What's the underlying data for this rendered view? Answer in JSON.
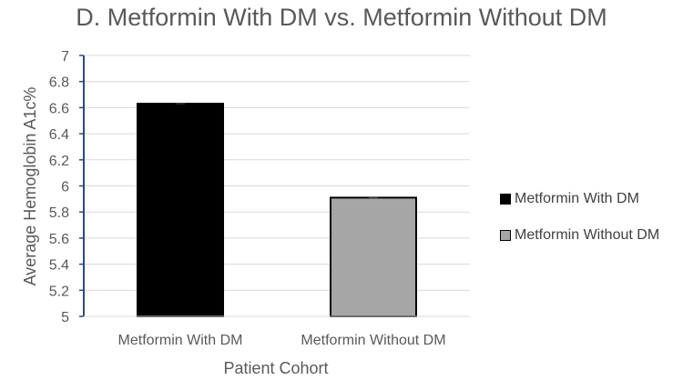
{
  "chart_data": {
    "type": "bar",
    "title": "D. Metformin With DM vs. Metformin Without DM",
    "xlabel": "Patient Cohort",
    "ylabel": "Average Hemoglobin A1c%",
    "ylim": [
      5,
      7
    ],
    "yticks": [
      "5",
      "5.2",
      "5.4",
      "5.6",
      "5.8",
      "6",
      "6.2",
      "6.4",
      "6.6",
      "6.8",
      "7"
    ],
    "categories": [
      "Metformin With DM",
      "Metformin Without DM"
    ],
    "values": [
      6.63,
      5.91
    ],
    "colors": [
      "#000000",
      "#a6a6a6"
    ],
    "error_bars": true,
    "grid": true,
    "legend": {
      "position": "right",
      "entries": [
        "Metformin With DM",
        "Metformin Without DM"
      ]
    }
  }
}
